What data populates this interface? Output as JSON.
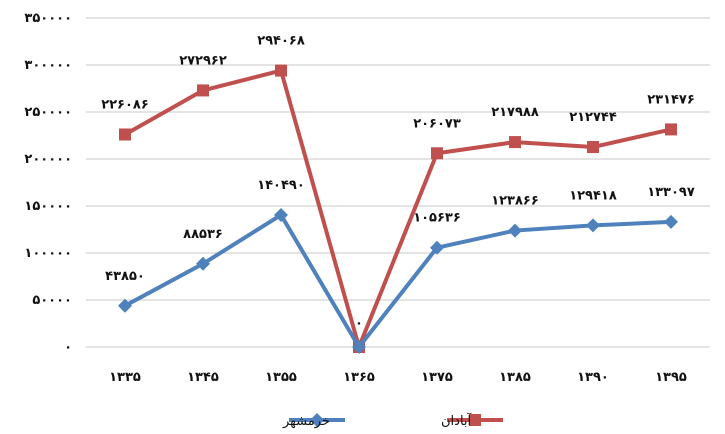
{
  "chart_data": {
    "type": "line",
    "categories": [
      "۱۳۳۵",
      "۱۳۴۵",
      "۱۳۵۵",
      "۱۳۶۵",
      "۱۳۷۵",
      "۱۳۸۵",
      "۱۳۹۰",
      "۱۳۹۵"
    ],
    "ylim": [
      0,
      350000
    ],
    "yticks": [
      0,
      50000,
      100000,
      150000,
      200000,
      250000,
      300000,
      350000
    ],
    "ytick_labels": [
      "۰",
      "۵۰۰۰۰",
      "۱۰۰۰۰۰",
      "۱۵۰۰۰۰",
      "۲۰۰۰۰۰",
      "۲۵۰۰۰۰",
      "۳۰۰۰۰۰",
      "۳۵۰۰۰۰"
    ],
    "grid": true,
    "legend_position": "bottom",
    "series": [
      {
        "name": "آبادان",
        "color": "#C0504D",
        "marker": "square",
        "values": [
          226086,
          272962,
          294068,
          0,
          206073,
          217988,
          212744,
          231476
        ],
        "labels": [
          "۲۲۶۰۸۶",
          "۲۷۲۹۶۲",
          "۲۹۴۰۶۸",
          "",
          "۲۰۶۰۷۳",
          "۲۱۷۹۸۸",
          "۲۱۲۷۴۴",
          "۲۳۱۴۷۶"
        ]
      },
      {
        "name": "خرمشهر",
        "color": "#4F81BD",
        "marker": "diamond",
        "values": [
          43850,
          88536,
          140490,
          0,
          105636,
          123866,
          129418,
          133097
        ],
        "labels": [
          "۴۳۸۵۰",
          "۸۸۵۳۶",
          "۱۴۰۴۹۰",
          "۰",
          "۱۰۵۶۳۶",
          "۱۲۳۸۶۶",
          "۱۲۹۴۱۸",
          "۱۳۳۰۹۷"
        ]
      }
    ]
  }
}
